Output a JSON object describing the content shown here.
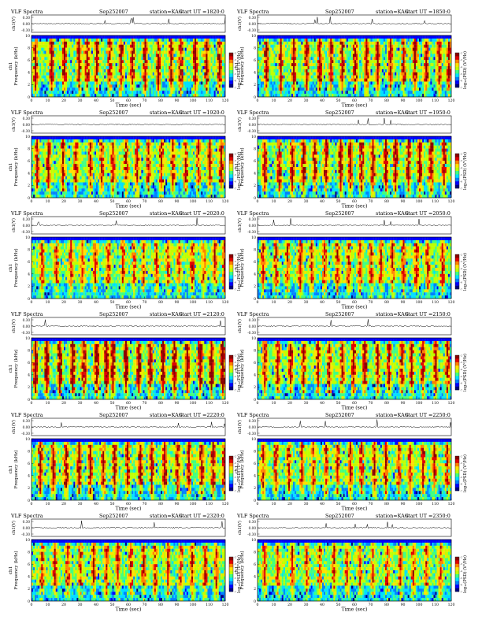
{
  "page": {
    "title": "VLF Spectra"
  },
  "colors": {
    "colormap": [
      "#00007f",
      "#0000ff",
      "#0080ff",
      "#00e0ff",
      "#40ff80",
      "#c0ff00",
      "#ffe000",
      "#ff8000",
      "#e00000",
      "#8b0000"
    ],
    "trace": "#000000",
    "frame": "#000000",
    "top_band": "#0000cc"
  },
  "chart_data": [
    {
      "type": "heatmap",
      "title": "VLF Spectra",
      "date": "Sep252007",
      "station": "station=KAG",
      "start": "start  UT  =1820:0",
      "xlabel": "Time  (sec)",
      "xlim": [
        0,
        120
      ],
      "xticks": [
        "0",
        "10",
        "20",
        "30",
        "40",
        "50",
        "60",
        "70",
        "80",
        "90",
        "100",
        "110",
        "120"
      ],
      "ylabel": "Frequency  (kHz)",
      "channel_label": "ch1",
      "ylim": [
        0,
        10
      ],
      "yticks": [
        "0",
        "2",
        "4",
        "6",
        "8",
        "10"
      ],
      "ch_label": "ch1(V)",
      "ch_ticks": [
        "0.30",
        "0.00",
        "-0.30"
      ],
      "colorbar_label": "log₁₀(PSD) (V²/Hz)",
      "colorbar_ticks": [
        "-2",
        "-3",
        "-4",
        "-5",
        "-6",
        "-7"
      ],
      "seed": 11,
      "intensity": 0.62,
      "bursts": [
        2,
        12,
        20,
        29,
        34,
        40,
        48,
        55,
        62,
        70,
        78,
        86,
        92,
        101,
        108,
        116
      ]
    },
    {
      "type": "heatmap",
      "title": "VLF Spectra",
      "date": "Sep252007",
      "station": "station=KAG",
      "start": "start  UT  =1850:0",
      "xlabel": "Time  (sec)",
      "xlim": [
        0,
        120
      ],
      "xticks": [
        "0",
        "10",
        "20",
        "30",
        "40",
        "50",
        "60",
        "70",
        "80",
        "90",
        "100",
        "110",
        "120"
      ],
      "ylabel": "Frequency  (kHz)",
      "channel_label": "ch1",
      "ylim": [
        0,
        10
      ],
      "yticks": [
        "0",
        "2",
        "4",
        "6",
        "8",
        "10"
      ],
      "ch_label": "ch1(V)",
      "ch_ticks": [
        "0.30",
        "0.00",
        "-0.30"
      ],
      "colorbar_label": "log₁₀(PSD) (V²/Hz)",
      "colorbar_ticks": [
        "-2",
        "-3",
        "-4",
        "-5",
        "-6",
        "-7"
      ],
      "seed": 23,
      "intensity": 0.6,
      "bursts": [
        5,
        14,
        22,
        30,
        38,
        45,
        52,
        60,
        67,
        74,
        82,
        90,
        97,
        104,
        112,
        118
      ]
    },
    {
      "type": "heatmap",
      "title": "VLF Spectra",
      "date": "Sep252007",
      "station": "station=KAG",
      "start": "start  UT  =1920:0",
      "xlabel": "Time  (sec)",
      "xlim": [
        0,
        120
      ],
      "xticks": [
        "0",
        "10",
        "20",
        "30",
        "40",
        "50",
        "60",
        "70",
        "80",
        "90",
        "100",
        "110",
        "120"
      ],
      "ylabel": "Frequency  (kHz)",
      "channel_label": "ch1",
      "ylim": [
        0,
        10
      ],
      "yticks": [
        "0",
        "2",
        "4",
        "6",
        "8",
        "10"
      ],
      "ch_label": "ch1(V)",
      "ch_ticks": [
        "0.30",
        "0.00",
        "-0.30"
      ],
      "colorbar_label": "log₁₀(PSD) (V²/Hz)",
      "colorbar_ticks": [
        "-2",
        "-3",
        "-4",
        "-5",
        "-6",
        "-7"
      ],
      "seed": 37,
      "intensity": 0.55,
      "bursts": [
        3,
        10,
        19,
        27,
        36,
        43,
        50,
        58,
        65,
        72,
        80,
        87,
        95,
        103,
        110,
        117
      ]
    },
    {
      "type": "heatmap",
      "title": "VLF Spectra",
      "date": "Sep252007",
      "station": "station=KAG",
      "start": "start  UT  =1950:0",
      "xlabel": "Time  (sec)",
      "xlim": [
        0,
        120
      ],
      "xticks": [
        "0",
        "10",
        "20",
        "30",
        "40",
        "50",
        "60",
        "70",
        "80",
        "90",
        "100",
        "110",
        "120"
      ],
      "ylabel": "Frequency  (kHz)",
      "channel_label": "ch1",
      "ylim": [
        0,
        10
      ],
      "yticks": [
        "0",
        "2",
        "4",
        "6",
        "8",
        "10"
      ],
      "ch_label": "ch1(V)",
      "ch_ticks": [
        "0.30",
        "0.00",
        "-0.30"
      ],
      "colorbar_label": "log₁₀(PSD) (V²/Hz)",
      "colorbar_ticks": [
        "-2",
        "-3",
        "-4",
        "-5",
        "-6",
        "-7"
      ],
      "seed": 41,
      "intensity": 0.63,
      "bursts": [
        4,
        13,
        21,
        28,
        35,
        42,
        51,
        57,
        64,
        71,
        79,
        85,
        93,
        100,
        107,
        115
      ]
    },
    {
      "type": "heatmap",
      "title": "VLF Spectra",
      "date": "Sep252007",
      "station": "station=KAG",
      "start": "start  UT  =2020:0",
      "xlabel": "Time  (sec)",
      "xlim": [
        0,
        120
      ],
      "xticks": [
        "0",
        "10",
        "20",
        "30",
        "40",
        "50",
        "60",
        "70",
        "80",
        "90",
        "100",
        "110",
        "120"
      ],
      "ylabel": "Frequency  (kHz)",
      "channel_label": "ch1",
      "ylim": [
        0,
        10
      ],
      "yticks": [
        "0",
        "2",
        "4",
        "6",
        "8",
        "10"
      ],
      "ch_label": "ch1(V)",
      "ch_ticks": [
        "0.30",
        "0.00",
        "-0.30"
      ],
      "colorbar_label": "log₁₀(PSD) (V²/Hz)",
      "colorbar_ticks": [
        "-2",
        "-3",
        "-4",
        "-5",
        "-6",
        "-7"
      ],
      "seed": 53,
      "intensity": 0.45,
      "bursts": [
        6,
        15,
        24,
        31,
        39,
        47,
        56,
        63,
        69,
        77,
        84,
        91,
        99,
        106,
        113,
        119
      ]
    },
    {
      "type": "heatmap",
      "title": "VLF Spectra",
      "date": "Sep252007",
      "station": "station=KAG",
      "start": "start  UT  =2050:0",
      "xlabel": "Time  (sec)",
      "xlim": [
        0,
        120
      ],
      "xticks": [
        "0",
        "10",
        "20",
        "30",
        "40",
        "50",
        "60",
        "70",
        "80",
        "90",
        "100",
        "110",
        "120"
      ],
      "ylabel": "Frequency  (kHz)",
      "channel_label": "ch1",
      "ylim": [
        0,
        10
      ],
      "yticks": [
        "0",
        "2",
        "4",
        "6",
        "8",
        "10"
      ],
      "ch_label": "ch1(V)",
      "ch_ticks": [
        "0.30",
        "0.00",
        "-0.30"
      ],
      "colorbar_label": "log₁₀(PSD) (V²/Hz)",
      "colorbar_ticks": [
        "-2",
        "-3",
        "-4",
        "-5",
        "-6",
        "-7"
      ],
      "seed": 67,
      "intensity": 0.5,
      "bursts": [
        3,
        11,
        18,
        26,
        33,
        41,
        49,
        56,
        63,
        70,
        76,
        83,
        90,
        98,
        105,
        114
      ]
    },
    {
      "type": "heatmap",
      "title": "VLF Spectra",
      "date": "Sep252007",
      "station": "station=KAG",
      "start": "start  UT  =2120:0",
      "xlabel": "Time  (sec)",
      "xlim": [
        0,
        120
      ],
      "xticks": [
        "0",
        "10",
        "20",
        "30",
        "40",
        "50",
        "60",
        "70",
        "80",
        "90",
        "100",
        "110",
        "120"
      ],
      "ylabel": "Frequency  (kHz)",
      "channel_label": "ch1",
      "ylim": [
        0,
        10
      ],
      "yticks": [
        "0",
        "2",
        "4",
        "6",
        "8",
        "10"
      ],
      "ch_label": "ch1(V)",
      "ch_ticks": [
        "0.30",
        "0.00",
        "-0.30"
      ],
      "colorbar_label": "log₁₀(PSD) (V²/Hz)",
      "colorbar_ticks": [
        "-2",
        "-3",
        "-4",
        "-5",
        "-6",
        "-7"
      ],
      "seed": 71,
      "intensity": 0.72,
      "bursts": [
        2,
        9,
        17,
        25,
        32,
        40,
        46,
        50,
        58,
        66,
        73,
        81,
        88,
        96,
        104,
        111,
        118
      ]
    },
    {
      "type": "heatmap",
      "title": "VLF Spectra",
      "date": "Sep252007",
      "station": "station=KAG",
      "start": "start  UT  =2150:0",
      "xlabel": "Time  (sec)",
      "xlim": [
        0,
        120
      ],
      "xticks": [
        "0",
        "10",
        "20",
        "30",
        "40",
        "50",
        "60",
        "70",
        "80",
        "90",
        "100",
        "110",
        "120"
      ],
      "ylabel": "Frequency  (kHz)",
      "channel_label": "ch1",
      "ylim": [
        0,
        10
      ],
      "yticks": [
        "0",
        "2",
        "4",
        "6",
        "8",
        "10"
      ],
      "ch_label": "ch1(V)",
      "ch_ticks": [
        "0.30",
        "0.00",
        "-0.30"
      ],
      "colorbar_label": "log₁₀(PSD) (V²/Hz)",
      "colorbar_ticks": [
        "-2",
        "-3",
        "-4",
        "-5",
        "-6",
        "-7"
      ],
      "seed": 83,
      "intensity": 0.58,
      "bursts": [
        4,
        12,
        20,
        28,
        37,
        44,
        52,
        59,
        66,
        74,
        81,
        89,
        95,
        102,
        110,
        117
      ]
    },
    {
      "type": "heatmap",
      "title": "VLF Spectra",
      "date": "Sep252007",
      "station": "station=KAG",
      "start": "start  UT  =2220:0",
      "xlabel": "Time  (sec)",
      "xlim": [
        0,
        120
      ],
      "xticks": [
        "0",
        "10",
        "20",
        "30",
        "40",
        "50",
        "60",
        "70",
        "80",
        "90",
        "100",
        "110",
        "120"
      ],
      "ylabel": "Frequency  (kHz)",
      "channel_label": "ch1",
      "ylim": [
        0,
        10
      ],
      "yticks": [
        "0",
        "2",
        "4",
        "6",
        "8",
        "10"
      ],
      "ch_label": "ch1(V)",
      "ch_ticks": [
        "0.30",
        "0.00",
        "-0.30"
      ],
      "colorbar_label": "log₁₀(PSD) (V²/Hz)",
      "colorbar_ticks": [
        "-2",
        "-3",
        "-4",
        "-5",
        "-6",
        "-7"
      ],
      "seed": 97,
      "intensity": 0.6,
      "bursts": [
        5,
        13,
        21,
        29,
        36,
        44,
        51,
        59,
        67,
        74,
        82,
        90,
        97,
        105,
        112,
        119
      ]
    },
    {
      "type": "heatmap",
      "title": "VLF Spectra",
      "date": "Sep252007",
      "station": "station=KAG",
      "start": "start  UT  =2250:0",
      "xlabel": "Time  (sec)",
      "xlim": [
        0,
        120
      ],
      "xticks": [
        "0",
        "10",
        "20",
        "30",
        "40",
        "50",
        "60",
        "70",
        "80",
        "90",
        "100",
        "110",
        "120"
      ],
      "ylabel": "Frequency  (kHz)",
      "channel_label": "ch1",
      "ylim": [
        0,
        10
      ],
      "yticks": [
        "0",
        "2",
        "4",
        "6",
        "8",
        "10"
      ],
      "ch_label": "ch1(V)",
      "ch_ticks": [
        "0.30",
        "0.00",
        "-0.30"
      ],
      "colorbar_label": "log₁₀(PSD) (V²/Hz)",
      "colorbar_ticks": [
        "-2",
        "-3",
        "-4",
        "-5",
        "-6",
        "-7"
      ],
      "seed": 101,
      "intensity": 0.52,
      "bursts": [
        3,
        11,
        19,
        27,
        34,
        42,
        49,
        57,
        64,
        72,
        79,
        87,
        94,
        102,
        109,
        117
      ]
    },
    {
      "type": "heatmap",
      "title": "VLF Spectra",
      "date": "Sep252007",
      "station": "station=KAG",
      "start": "start  UT  =2320:0",
      "xlabel": "Time  (sec)",
      "xlim": [
        0,
        120
      ],
      "xticks": [
        "0",
        "10",
        "20",
        "30",
        "40",
        "50",
        "60",
        "70",
        "80",
        "90",
        "100",
        "110",
        "120"
      ],
      "ylabel": "Frequency  (kHz)",
      "channel_label": "ch1",
      "ylim": [
        0,
        10
      ],
      "yticks": [
        "0",
        "2",
        "4",
        "6",
        "8",
        "10"
      ],
      "ch_label": "ch1(V)",
      "ch_ticks": [
        "0.30",
        "0.00",
        "-0.30"
      ],
      "colorbar_label": "log₁₀(PSD) (V²/Hz)",
      "colorbar_ticks": [
        "-2",
        "-3",
        "-4",
        "-5",
        "-6",
        "-7"
      ],
      "seed": 113,
      "intensity": 0.5,
      "bursts": [
        6,
        14,
        22,
        30,
        38,
        46,
        53,
        61,
        69,
        76,
        84,
        92,
        99,
        107,
        114
      ]
    },
    {
      "type": "heatmap",
      "title": "VLF Spectra",
      "date": "Sep252007",
      "station": "station=KAG",
      "start": "start  UT  =2350:0",
      "xlabel": "Time  (sec)",
      "xlim": [
        0,
        120
      ],
      "xticks": [
        "0",
        "10",
        "20",
        "30",
        "40",
        "50",
        "60",
        "70",
        "80",
        "90",
        "100",
        "110",
        "120"
      ],
      "ylabel": "Frequency  (kHz)",
      "channel_label": "ch1",
      "ylim": [
        0,
        10
      ],
      "yticks": [
        "0",
        "2",
        "4",
        "6",
        "8",
        "10"
      ],
      "ch_label": "ch1(V)",
      "ch_ticks": [
        "0.30",
        "0.00",
        "-0.30"
      ],
      "colorbar_label": "log₁₀(PSD) (V²/Hz)",
      "colorbar_ticks": [
        "-2",
        "-3",
        "-4",
        "-5",
        "-6",
        "-7"
      ],
      "seed": 127,
      "intensity": 0.42,
      "bursts": [
        4,
        12,
        21,
        30,
        38,
        47,
        55,
        63,
        71,
        80,
        88,
        96,
        104,
        113
      ]
    }
  ]
}
